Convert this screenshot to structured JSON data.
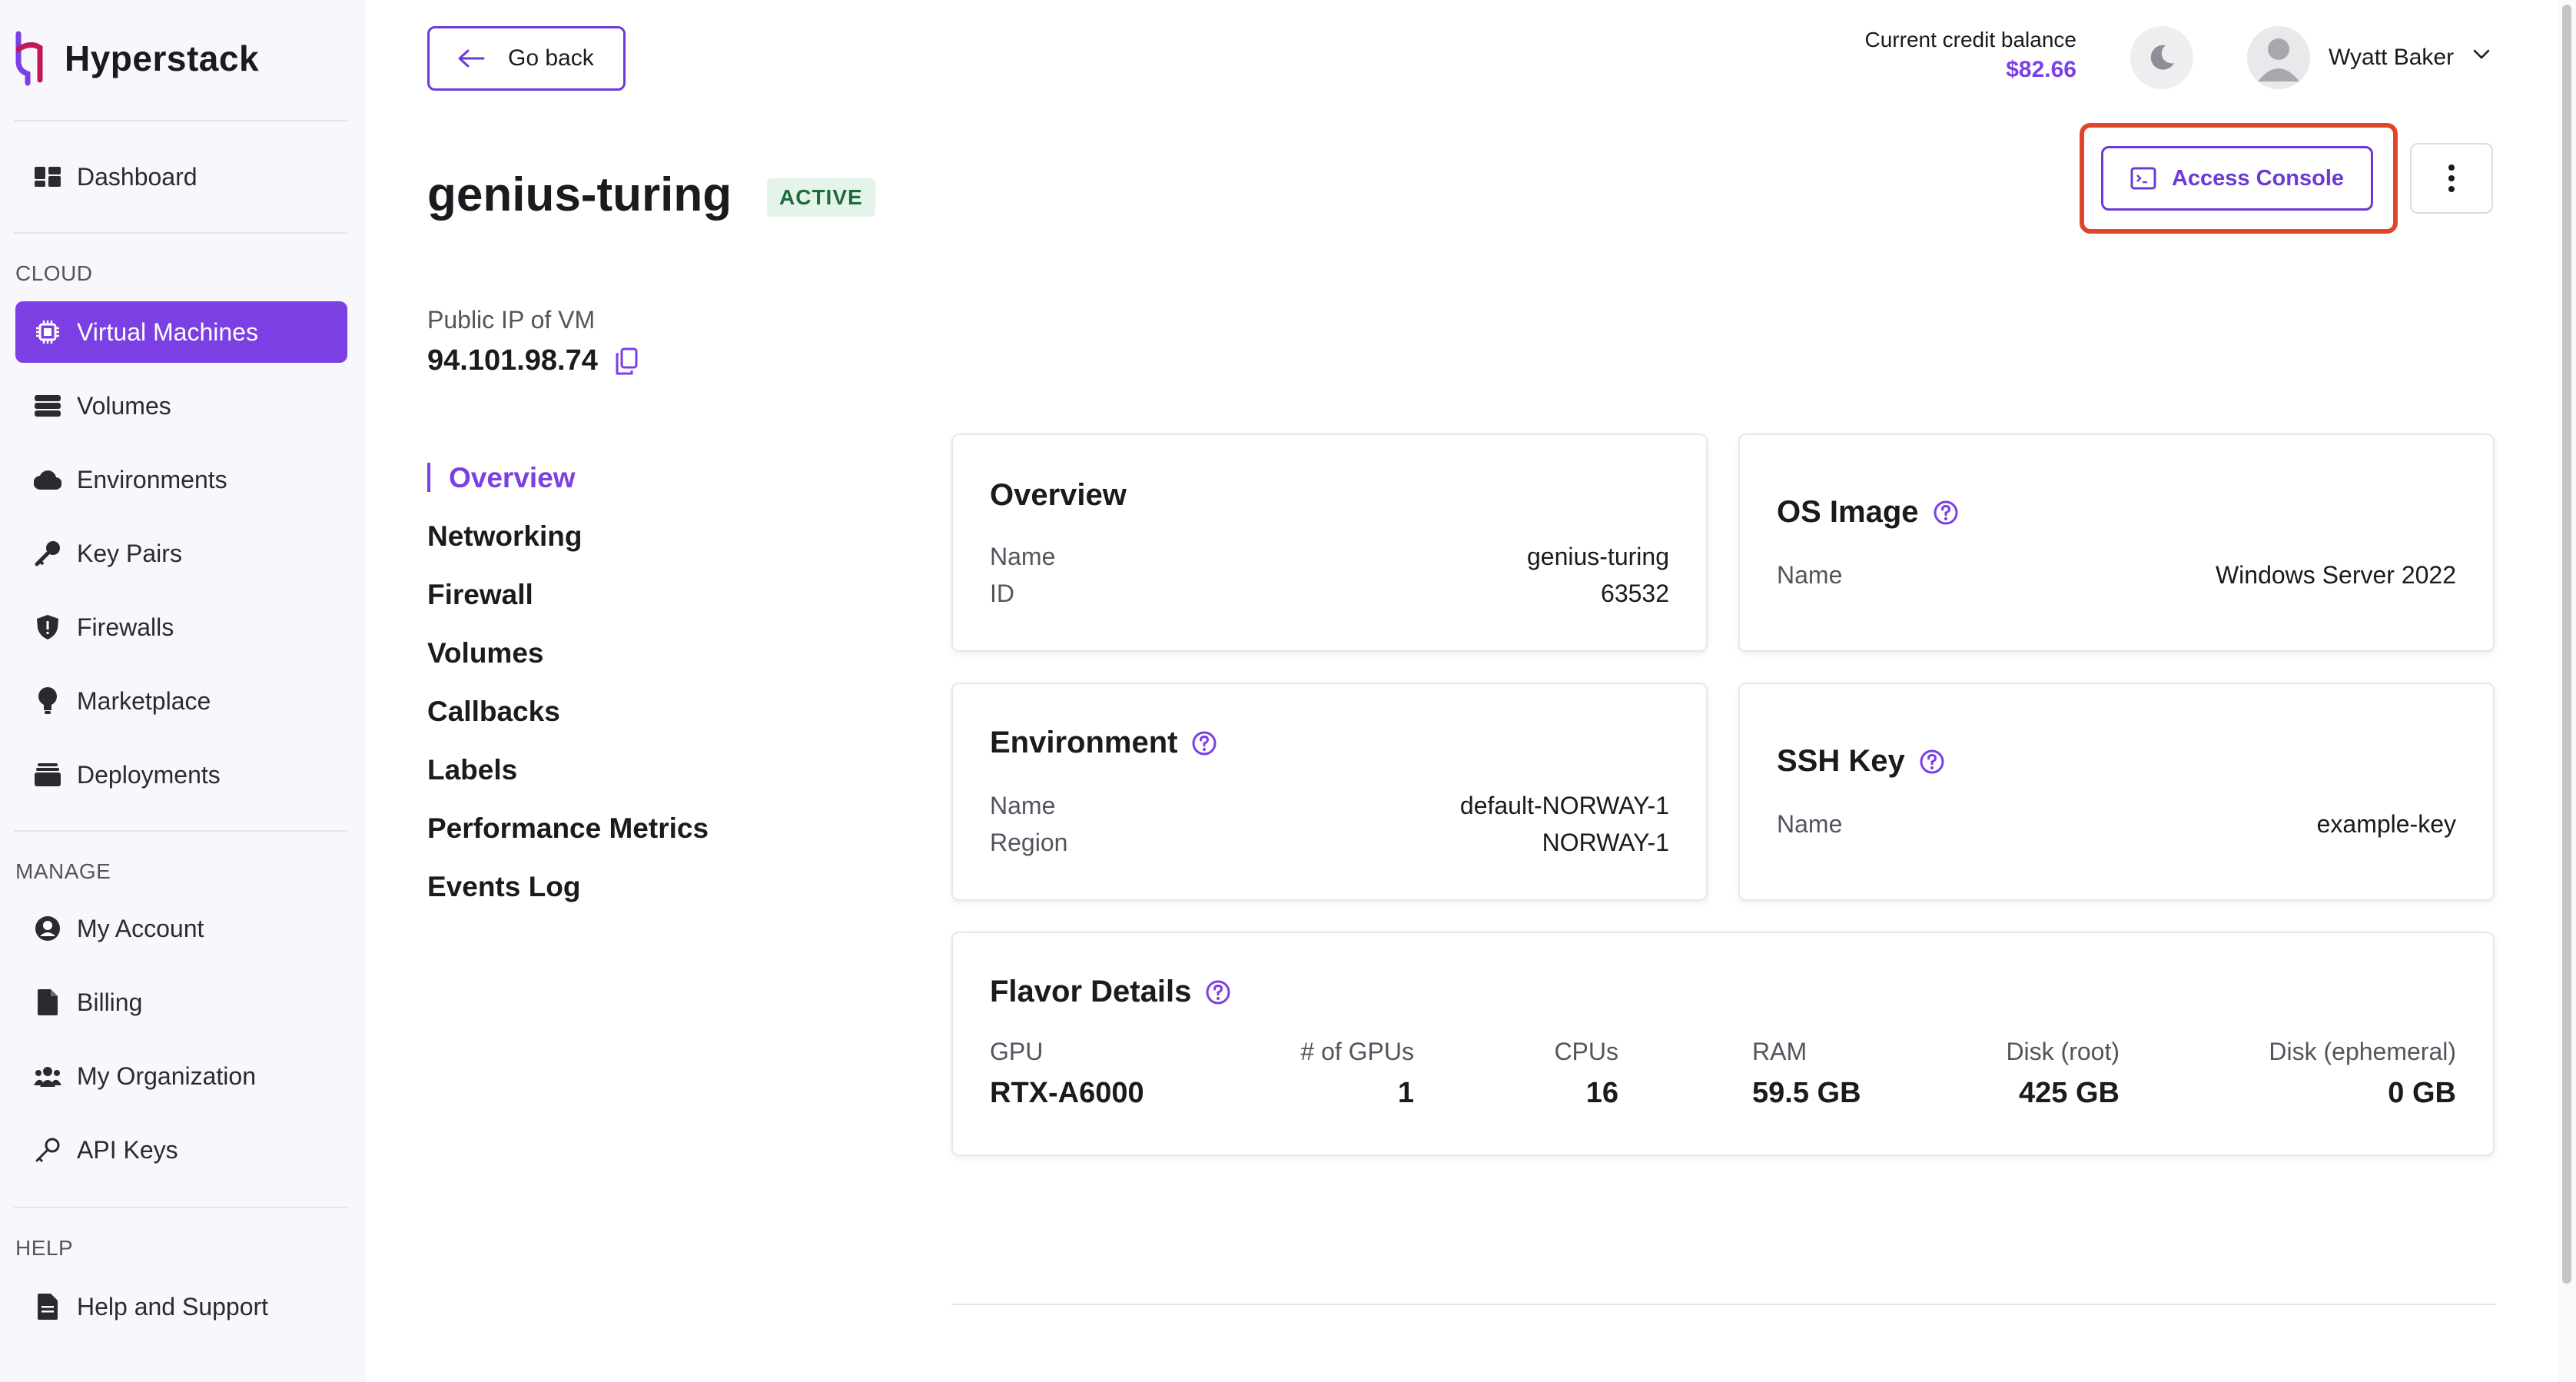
{
  "brand": {
    "name": "Hyperstack"
  },
  "sidebar": {
    "dashboard": "Dashboard",
    "sections": {
      "cloud": "CLOUD",
      "manage": "MANAGE",
      "help": "HELP"
    },
    "cloud_items": [
      {
        "label": "Virtual Machines",
        "icon": "chip-icon",
        "active": true
      },
      {
        "label": "Volumes",
        "icon": "database-icon"
      },
      {
        "label": "Environments",
        "icon": "cloud-icon"
      },
      {
        "label": "Key Pairs",
        "icon": "key-icon"
      },
      {
        "label": "Firewalls",
        "icon": "shield-icon"
      },
      {
        "label": "Marketplace",
        "icon": "lightbulb-icon"
      },
      {
        "label": "Deployments",
        "icon": "layers-icon"
      }
    ],
    "manage_items": [
      {
        "label": "My Account",
        "icon": "user-circle-icon"
      },
      {
        "label": "Billing",
        "icon": "file-icon"
      },
      {
        "label": "My Organization",
        "icon": "users-icon"
      },
      {
        "label": "API Keys",
        "icon": "key-outline-icon"
      }
    ],
    "help_items": [
      {
        "label": "Help and Support",
        "icon": "document-icon"
      }
    ]
  },
  "header": {
    "back_label": "Go back",
    "credit_label": "Current credit balance",
    "credit_value": "$82.66",
    "user_name": "Wyatt Baker"
  },
  "vm": {
    "name": "genius-turing",
    "status": "ACTIVE",
    "access_console_label": "Access Console",
    "ip_label": "Public IP of VM",
    "ip_value": "94.101.98.74"
  },
  "subnav": [
    "Overview",
    "Networking",
    "Firewall",
    "Volumes",
    "Callbacks",
    "Labels",
    "Performance Metrics",
    "Events Log"
  ],
  "cards": {
    "overview": {
      "title": "Overview",
      "rows": [
        {
          "label": "Name",
          "value": "genius-turing"
        },
        {
          "label": "ID",
          "value": "63532"
        }
      ]
    },
    "os_image": {
      "title": "OS Image",
      "rows": [
        {
          "label": "Name",
          "value": "Windows Server 2022"
        }
      ]
    },
    "environment": {
      "title": "Environment",
      "rows": [
        {
          "label": "Name",
          "value": "default-NORWAY-1"
        },
        {
          "label": "Region",
          "value": "NORWAY-1"
        }
      ]
    },
    "ssh_key": {
      "title": "SSH Key",
      "rows": [
        {
          "label": "Name",
          "value": "example-key"
        }
      ]
    },
    "flavor": {
      "title": "Flavor Details",
      "columns": [
        {
          "label": "GPU",
          "value": "RTX-A6000"
        },
        {
          "label": "# of GPUs",
          "value": "1"
        },
        {
          "label": "CPUs",
          "value": "16"
        },
        {
          "label": "RAM",
          "value": "59.5 GB"
        },
        {
          "label": "Disk (root)",
          "value": "425 GB"
        },
        {
          "label": "Disk (ephemeral)",
          "value": "0 GB"
        }
      ]
    }
  },
  "colors": {
    "accent": "#7b3fe4",
    "highlight": "#e0442a",
    "active_badge_bg": "#e4f4ea"
  }
}
